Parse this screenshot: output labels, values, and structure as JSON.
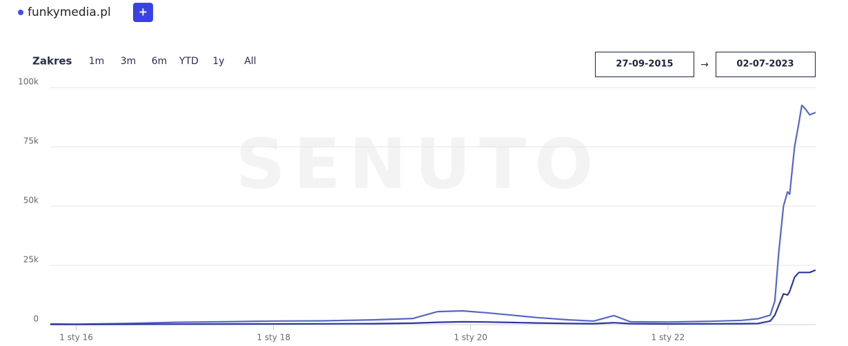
{
  "chart_data": {
    "type": "line",
    "legend": "funkymedia.pl",
    "add_button": "+",
    "range_label": "Zakres",
    "range_options": [
      "1m",
      "3m",
      "6m",
      "YTD",
      "1y",
      "All"
    ],
    "date_from": "27-09-2015",
    "date_arrow": "→",
    "date_to": "02-07-2023",
    "watermark": "SENUTO",
    "xlim": [
      "2015-09-27",
      "2023-07-02"
    ],
    "xticks": [
      {
        "value": "2016-01-01",
        "label": "1 sty 16"
      },
      {
        "value": "2018-01-01",
        "label": "1 sty 18"
      },
      {
        "value": "2020-01-01",
        "label": "1 sty 20"
      },
      {
        "value": "2022-01-01",
        "label": "1 sty 22"
      }
    ],
    "ylim": [
      0,
      100000
    ],
    "yticks": [
      0,
      {
        "value": 25000,
        "label": "25k"
      },
      {
        "value": 50000,
        "label": "50k"
      },
      {
        "value": 75000,
        "label": "75k"
      },
      {
        "value": 100000,
        "label": "100k"
      }
    ],
    "grid": true,
    "x": [
      "2015-09-27",
      "2016-01-01",
      "2016-07-01",
      "2017-01-01",
      "2017-07-01",
      "2018-01-01",
      "2018-07-01",
      "2019-01-01",
      "2019-06-01",
      "2019-09-01",
      "2019-12-01",
      "2020-03-01",
      "2020-06-01",
      "2020-09-01",
      "2021-01-01",
      "2021-04-01",
      "2021-06-15",
      "2021-08-15",
      "2022-01-01",
      "2022-06-01",
      "2022-10-01",
      "2022-12-01",
      "2023-01-15",
      "2023-02-01",
      "2023-02-15",
      "2023-03-05",
      "2023-03-20",
      "2023-03-28",
      "2023-04-15",
      "2023-05-01",
      "2023-05-12",
      "2023-05-25",
      "2023-06-10",
      "2023-07-02"
    ],
    "series": [
      {
        "name": "funkymedia.pl",
        "color": "#5566c4",
        "values": [
          300,
          200,
          500,
          1000,
          1200,
          1500,
          1600,
          2000,
          2600,
          5500,
          5800,
          5000,
          4000,
          3000,
          2000,
          1500,
          3800,
          1200,
          1100,
          1400,
          1800,
          2500,
          4000,
          10000,
          30000,
          50000,
          56000,
          55000,
          75000,
          85000,
          92500,
          91000,
          88500,
          89500
        ]
      },
      {
        "color": "#2b3799",
        "values": [
          100,
          100,
          150,
          200,
          250,
          300,
          350,
          400,
          600,
          1000,
          1200,
          1100,
          900,
          700,
          500,
          400,
          800,
          400,
          300,
          350,
          400,
          500,
          1500,
          4000,
          8000,
          13000,
          12500,
          14000,
          20000,
          22000,
          22000,
          22000,
          22000,
          23000
        ]
      }
    ]
  }
}
